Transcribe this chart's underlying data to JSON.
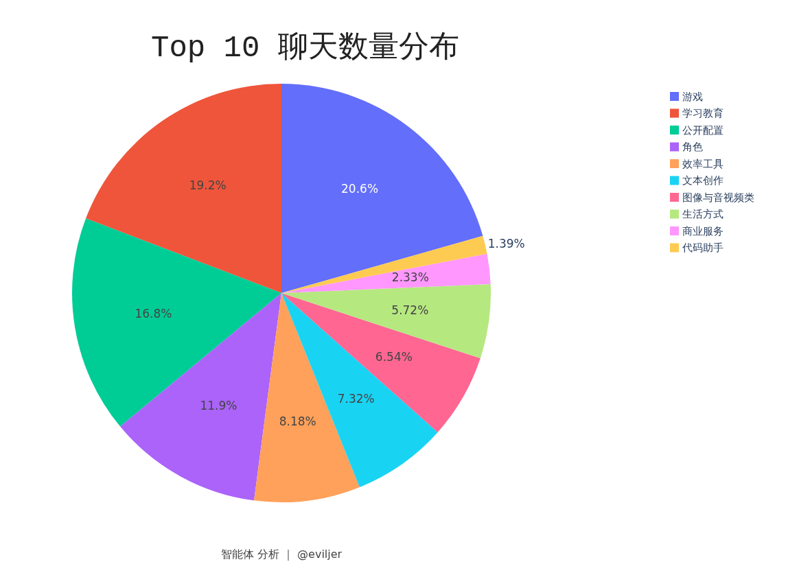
{
  "chart_data": {
    "type": "pie",
    "title": "Top 10 聊天数量分布",
    "categories": [
      "游戏",
      "学习教育",
      "公开配置",
      "角色",
      "效率工具",
      "文本创作",
      "图像与音视频类",
      "生活方式",
      "商业服务",
      "代码助手"
    ],
    "values": [
      20.6,
      19.2,
      16.8,
      11.9,
      8.18,
      7.32,
      6.54,
      5.72,
      2.33,
      1.39
    ],
    "value_labels": [
      "20.6%",
      "19.2%",
      "16.8%",
      "11.9%",
      "8.18%",
      "7.32%",
      "6.54%",
      "5.72%",
      "2.33%",
      "1.39%"
    ],
    "colors": [
      "#636efa",
      "#ef553b",
      "#00cc96",
      "#ab63fa",
      "#ffa15a",
      "#19d3f3",
      "#ff6692",
      "#b6e880",
      "#ff97ff",
      "#fecb52"
    ],
    "legend": "top right",
    "annotations": [
      "智能体 分析 ｜ @eviljer"
    ]
  }
}
